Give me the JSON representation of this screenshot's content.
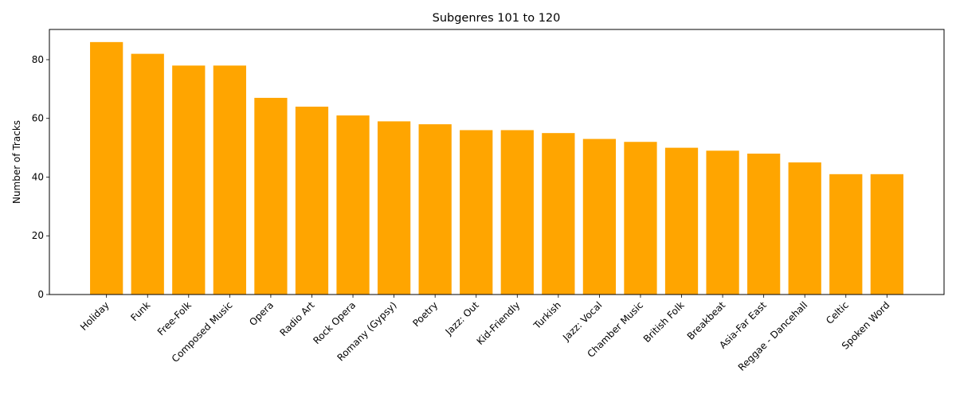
{
  "chart_data": {
    "type": "bar",
    "title": "Subgenres 101 to 120",
    "xlabel": "",
    "ylabel": "Number of Tracks",
    "ylim": [
      0,
      90.3
    ],
    "yticks": [
      0,
      20,
      40,
      60,
      80
    ],
    "grid": false,
    "bar_color": "#ffa500",
    "categories": [
      "Holiday",
      "Funk",
      "Free-Folk",
      "Composed Music",
      "Opera",
      "Radio Art",
      "Rock Opera",
      "Romany (Gypsy)",
      "Poetry",
      "Jazz: Out",
      "Kid-Friendly",
      "Turkish",
      "Jazz: Vocal",
      "Chamber Music",
      "British Folk",
      "Breakbeat",
      "Asia-Far East",
      "Reggae - Dancehall",
      "Celtic",
      "Spoken Word"
    ],
    "values": [
      86,
      82,
      78,
      78,
      67,
      64,
      61,
      59,
      58,
      56,
      56,
      55,
      53,
      52,
      50,
      49,
      48,
      45,
      41,
      41
    ]
  }
}
